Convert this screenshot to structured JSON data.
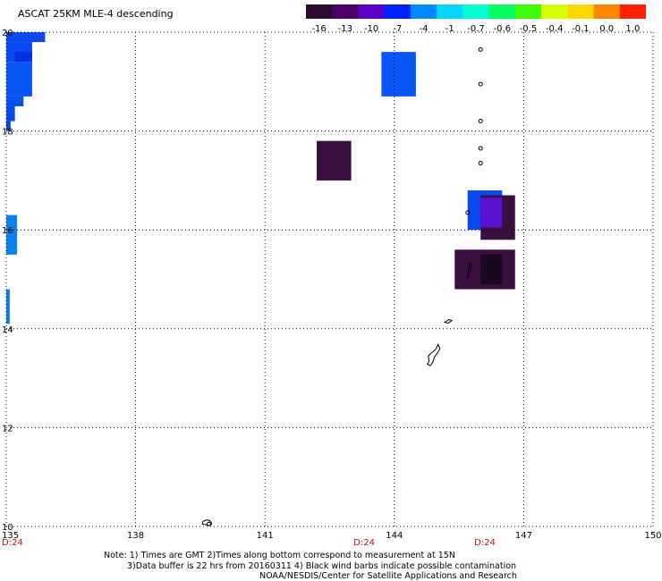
{
  "title": "ASCAT 25KM MLE-4 descending",
  "colorbar": {
    "labels": [
      "-16",
      "-13",
      "-10",
      "-7",
      "-4",
      "-1",
      "-0.7",
      "-0.6",
      "-0.5",
      "-0.4",
      "-0.1",
      "0.0",
      "1.0"
    ],
    "colors": [
      "#2a0a2e",
      "#4b0066",
      "#5a00c8",
      "#0022ff",
      "#0088ff",
      "#00d8ff",
      "#00ffd0",
      "#00ff60",
      "#40ff00",
      "#d8ff00",
      "#ffd800",
      "#ff8800",
      "#ff2000"
    ]
  },
  "axes": {
    "lat_labels": [
      "20",
      "18",
      "16",
      "14",
      "12",
      "10"
    ],
    "lon_labels": [
      "135",
      "138",
      "141",
      "144",
      "147",
      "150"
    ],
    "time_labels": [
      "D:24",
      "D:24",
      "D:24"
    ]
  },
  "notes": {
    "line1": "Note: 1) Times are GMT 2)Times along bottom correspond to measurement at 15N",
    "line2": "3)Data buffer is 22 hrs from 20160311 4) Black wind barbs indicate possible contamination",
    "line3": "NOAA/NESDIS/Center for Satellite Applications and Research"
  },
  "map_data": {
    "lat_range": [
      10,
      20
    ],
    "lon_range": [
      135,
      150
    ],
    "cells": [
      {
        "lon0": 135.0,
        "lon1": 135.9,
        "lat0": 19.8,
        "lat1": 20.0,
        "color": "#0a48f0"
      },
      {
        "lon0": 135.0,
        "lon1": 135.6,
        "lat0": 19.4,
        "lat1": 19.8,
        "color": "#0a48f0"
      },
      {
        "lon0": 135.2,
        "lon1": 135.6,
        "lat0": 19.4,
        "lat1": 19.6,
        "color": "#0030e0"
      },
      {
        "lon0": 135.0,
        "lon1": 135.6,
        "lat0": 18.7,
        "lat1": 19.4,
        "color": "#0a55f5"
      },
      {
        "lon0": 135.0,
        "lon1": 135.4,
        "lat0": 18.5,
        "lat1": 18.7,
        "color": "#0a50f0"
      },
      {
        "lon0": 135.0,
        "lon1": 135.2,
        "lat0": 18.2,
        "lat1": 18.5,
        "color": "#0a48e8"
      },
      {
        "lon0": 135.0,
        "lon1": 135.1,
        "lat0": 18.0,
        "lat1": 18.2,
        "color": "#0a40e0"
      },
      {
        "lon0": 135.0,
        "lon1": 135.25,
        "lat0": 15.5,
        "lat1": 16.3,
        "color": "#0a80f5"
      },
      {
        "lon0": 135.0,
        "lon1": 135.08,
        "lat0": 14.1,
        "lat1": 14.8,
        "color": "#0a78f0"
      },
      {
        "lon0": 143.7,
        "lon1": 144.5,
        "lat0": 18.7,
        "lat1": 19.6,
        "color": "#0a55f5"
      },
      {
        "lon0": 142.2,
        "lon1": 143.0,
        "lat0": 17.0,
        "lat1": 17.8,
        "color": "#3a1040"
      },
      {
        "lon0": 145.7,
        "lon1": 146.5,
        "lat0": 16.0,
        "lat1": 16.8,
        "color": "#0a48f0"
      },
      {
        "lon0": 146.0,
        "lon1": 146.8,
        "lat0": 15.8,
        "lat1": 16.7,
        "color": "#3a1040"
      },
      {
        "lon0": 146.0,
        "lon1": 146.5,
        "lat0": 16.05,
        "lat1": 16.65,
        "color": "#5a10d0"
      },
      {
        "lon0": 145.4,
        "lon1": 146.8,
        "lat0": 14.8,
        "lat1": 15.6,
        "color": "#3a1040"
      },
      {
        "lon0": 146.0,
        "lon1": 146.5,
        "lat0": 14.9,
        "lat1": 15.5,
        "color": "#1a0820"
      }
    ],
    "islands": [
      {
        "lon": 146.0,
        "lat": 19.65
      },
      {
        "lon": 146.0,
        "lat": 18.95
      },
      {
        "lon": 146.0,
        "lat": 18.2
      },
      {
        "lon": 146.0,
        "lat": 17.65
      },
      {
        "lon": 146.0,
        "lat": 17.35
      },
      {
        "lon": 145.7,
        "lat": 16.35
      },
      {
        "lon": 145.6,
        "lat": 14.15
      },
      {
        "lon": 139.7,
        "lat": 10.05
      }
    ]
  }
}
